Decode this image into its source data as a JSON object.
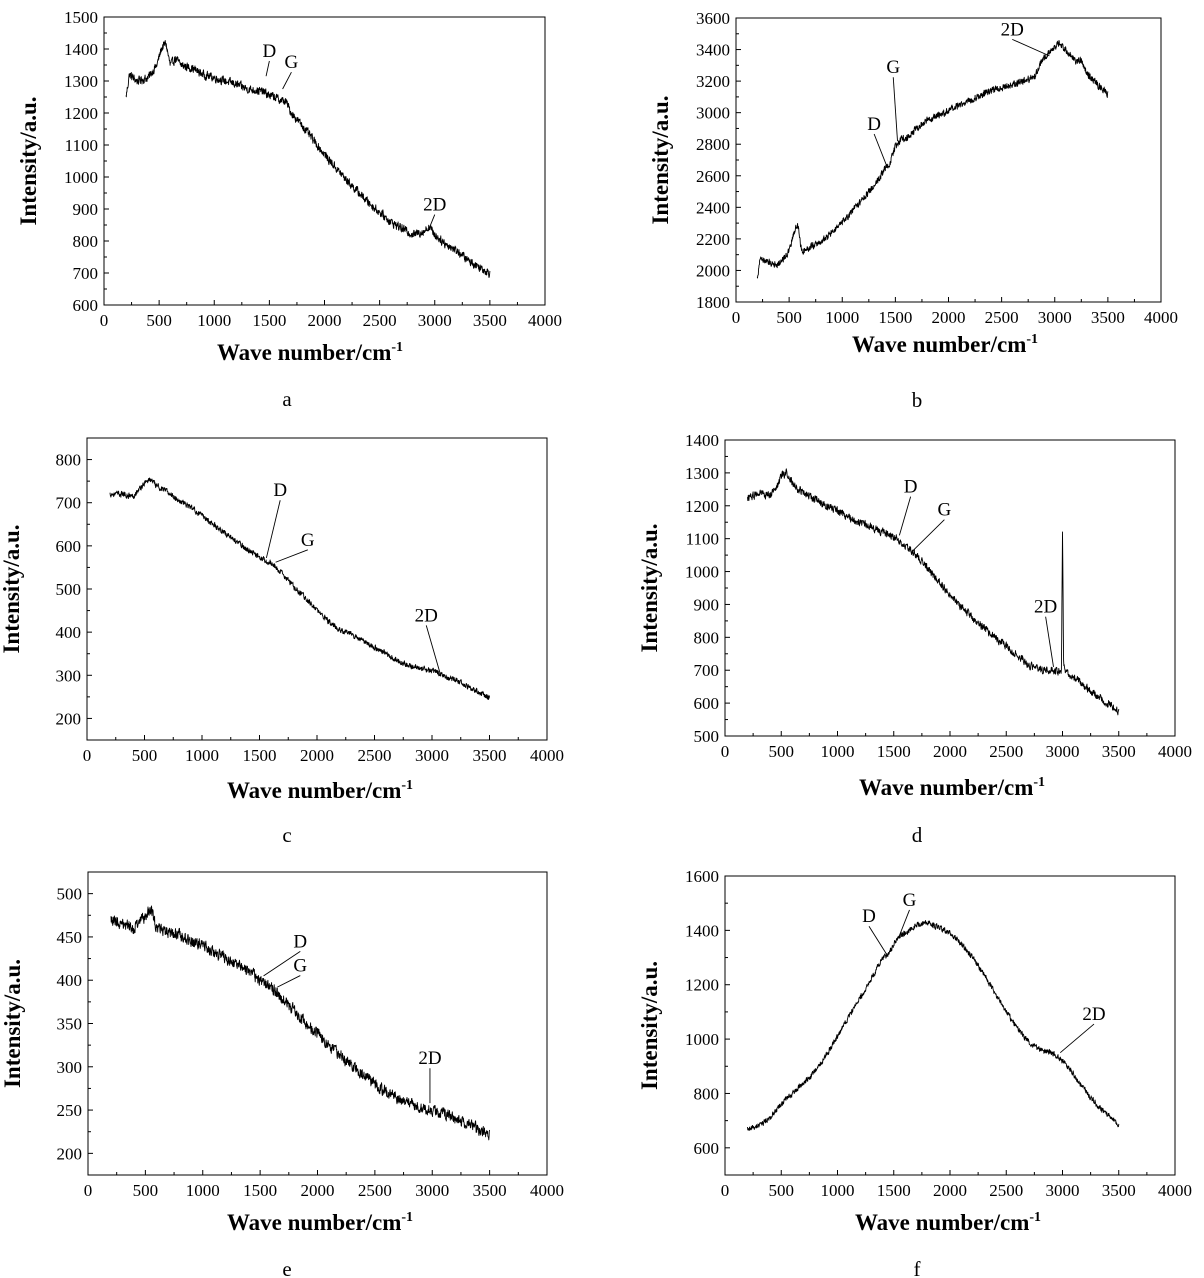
{
  "figure": {
    "panel_count": 6,
    "line_color": "#000000"
  },
  "chart_data": [
    {
      "type": "line",
      "panel": "a",
      "xlabel": "Wave number/cm",
      "xlabel_sup": "-1",
      "ylabel": "Intensity/a.u.",
      "xlim": [
        0,
        4000
      ],
      "ylim": [
        600,
        1500
      ],
      "xticks": [
        0,
        500,
        1000,
        1500,
        2000,
        2500,
        3000,
        3500,
        4000
      ],
      "yticks": [
        600,
        700,
        800,
        900,
        1000,
        1100,
        1200,
        1300,
        1400,
        1500
      ],
      "grid": false,
      "noise": 18,
      "series": [
        {
          "x": [
            200,
            230,
            300,
            400,
            480,
            520,
            560,
            600,
            650,
            700,
            800,
            900,
            1000,
            1100,
            1200,
            1300,
            1400,
            1450,
            1500,
            1550,
            1600,
            1650,
            1700,
            1800,
            2000,
            2200,
            2400,
            2600,
            2700,
            2800,
            2900,
            2950,
            3000,
            3100,
            3200,
            3300,
            3400,
            3500
          ],
          "y": [
            1250,
            1320,
            1300,
            1310,
            1350,
            1400,
            1420,
            1350,
            1370,
            1350,
            1340,
            1320,
            1310,
            1300,
            1290,
            1275,
            1270,
            1265,
            1255,
            1250,
            1240,
            1235,
            1200,
            1160,
            1070,
            990,
            920,
            860,
            840,
            820,
            830,
            845,
            820,
            790,
            770,
            740,
            720,
            700
          ]
        }
      ],
      "annotations": [
        {
          "text": "D",
          "x": 1470,
          "y": 1315,
          "tx": 1500,
          "ty": 1375
        },
        {
          "text": "G",
          "x": 1620,
          "y": 1275,
          "tx": 1700,
          "ty": 1340
        },
        {
          "text": "2D",
          "x": 2950,
          "y": 840,
          "tx": 3000,
          "ty": 895
        }
      ]
    },
    {
      "type": "line",
      "panel": "b",
      "xlabel": "Wave number/cm",
      "xlabel_sup": "-1",
      "ylabel": "Intensity/a.u.",
      "xlim": [
        0,
        4000
      ],
      "ylim": [
        1800,
        3600
      ],
      "xticks": [
        0,
        500,
        1000,
        1500,
        2000,
        2500,
        3000,
        3500,
        4000
      ],
      "yticks": [
        1800,
        2000,
        2200,
        2400,
        2600,
        2800,
        3000,
        3200,
        3400,
        3600
      ],
      "grid": false,
      "noise": 30,
      "series": [
        {
          "x": [
            200,
            230,
            300,
            400,
            500,
            550,
            580,
            620,
            700,
            800,
            900,
            1000,
            1100,
            1200,
            1300,
            1400,
            1450,
            1500,
            1550,
            1600,
            1700,
            1800,
            1900,
            2000,
            2200,
            2400,
            2600,
            2700,
            2800,
            2900,
            3000,
            3050,
            3100,
            3200,
            3250,
            3300,
            3400,
            3500
          ],
          "y": [
            1950,
            2080,
            2050,
            2040,
            2120,
            2250,
            2290,
            2120,
            2150,
            2180,
            2240,
            2300,
            2380,
            2460,
            2540,
            2640,
            2680,
            2790,
            2830,
            2840,
            2900,
            2950,
            2980,
            3010,
            3080,
            3140,
            3180,
            3200,
            3220,
            3350,
            3420,
            3440,
            3400,
            3320,
            3340,
            3250,
            3180,
            3120
          ]
        }
      ],
      "annotations": [
        {
          "text": "D",
          "x": 1420,
          "y": 2660,
          "tx": 1300,
          "ty": 2890
        },
        {
          "text": "G",
          "x": 1520,
          "y": 2820,
          "tx": 1480,
          "ty": 3250
        },
        {
          "text": "2D",
          "x": 2950,
          "y": 3360,
          "tx": 2600,
          "ty": 3490
        }
      ]
    },
    {
      "type": "line",
      "panel": "c",
      "xlabel": "Wave number/cm",
      "xlabel_sup": "-1",
      "ylabel": "Intensity/a.u.",
      "xlim": [
        0,
        4000
      ],
      "ylim": [
        150,
        850
      ],
      "xticks": [
        0,
        500,
        1000,
        1500,
        2000,
        2500,
        3000,
        3500,
        4000
      ],
      "yticks": [
        200,
        300,
        400,
        500,
        600,
        700,
        800
      ],
      "grid": false,
      "noise": 9,
      "series": [
        {
          "x": [
            200,
            300,
            400,
            500,
            550,
            600,
            700,
            800,
            900,
            1000,
            1100,
            1200,
            1300,
            1400,
            1500,
            1600,
            1700,
            1800,
            1900,
            2000,
            2100,
            2200,
            2300,
            2400,
            2500,
            2600,
            2700,
            2800,
            2900,
            3000,
            3100,
            3200,
            3300,
            3400,
            3500
          ],
          "y": [
            720,
            720,
            715,
            745,
            755,
            740,
            725,
            705,
            690,
            670,
            650,
            630,
            610,
            590,
            575,
            560,
            535,
            505,
            480,
            450,
            425,
            405,
            395,
            380,
            365,
            350,
            335,
            322,
            315,
            310,
            300,
            290,
            275,
            262,
            250
          ]
        }
      ],
      "annotations": [
        {
          "text": "D",
          "x": 1560,
          "y": 572,
          "tx": 1680,
          "ty": 715
        },
        {
          "text": "G",
          "x": 1640,
          "y": 562,
          "tx": 1920,
          "ty": 600
        },
        {
          "text": "2D",
          "x": 3070,
          "y": 305,
          "tx": 2950,
          "ty": 425
        }
      ]
    },
    {
      "type": "line",
      "panel": "d",
      "xlabel": "Wave number/cm",
      "xlabel_sup": "-1",
      "ylabel": "Intensity/a.u.",
      "xlim": [
        0,
        4000
      ],
      "ylim": [
        500,
        1400
      ],
      "xticks": [
        0,
        500,
        1000,
        1500,
        2000,
        2500,
        3000,
        3500,
        4000
      ],
      "yticks": [
        500,
        600,
        700,
        800,
        900,
        1000,
        1100,
        1200,
        1300,
        1400
      ],
      "grid": false,
      "noise": 16,
      "series": [
        {
          "x": [
            200,
            300,
            400,
            450,
            500,
            550,
            600,
            650,
            700,
            800,
            900,
            1000,
            1100,
            1200,
            1300,
            1400,
            1500,
            1550,
            1600,
            1700,
            1800,
            1900,
            2000,
            2200,
            2400,
            2600,
            2700,
            2800,
            2900,
            2990,
            3000,
            3010,
            3020,
            3050,
            3100,
            3200,
            3300,
            3400,
            3500
          ],
          "y": [
            1220,
            1240,
            1230,
            1250,
            1290,
            1300,
            1270,
            1250,
            1240,
            1220,
            1200,
            1185,
            1165,
            1150,
            1135,
            1120,
            1105,
            1095,
            1080,
            1050,
            1010,
            970,
            930,
            860,
            800,
            745,
            715,
            700,
            700,
            695,
            1130,
            720,
            695,
            690,
            680,
            650,
            625,
            600,
            575
          ]
        }
      ],
      "annotations": [
        {
          "text": "D",
          "x": 1550,
          "y": 1110,
          "tx": 1650,
          "ty": 1240
        },
        {
          "text": "G",
          "x": 1660,
          "y": 1060,
          "tx": 1950,
          "ty": 1170
        },
        {
          "text": "2D",
          "x": 2920,
          "y": 710,
          "tx": 2850,
          "ty": 875
        }
      ]
    },
    {
      "type": "line",
      "panel": "e",
      "xlabel": "Wave number/cm",
      "xlabel_sup": "-1",
      "ylabel": "Intensity/a.u.",
      "xlim": [
        0,
        4000
      ],
      "ylim": [
        175,
        525
      ],
      "xticks": [
        0,
        500,
        1000,
        1500,
        2000,
        2500,
        3000,
        3500,
        4000
      ],
      "yticks": [
        200,
        250,
        300,
        350,
        400,
        450,
        500
      ],
      "grid": false,
      "noise": 9,
      "series": [
        {
          "x": [
            200,
            300,
            400,
            500,
            550,
            600,
            700,
            800,
            900,
            1000,
            1100,
            1200,
            1300,
            1400,
            1500,
            1600,
            1700,
            1800,
            1900,
            2000,
            2200,
            2400,
            2600,
            2800,
            3000,
            3200,
            3400,
            3500
          ],
          "y": [
            470,
            465,
            460,
            475,
            482,
            460,
            455,
            452,
            445,
            440,
            432,
            425,
            418,
            410,
            400,
            392,
            378,
            365,
            350,
            338,
            313,
            290,
            270,
            258,
            250,
            240,
            228,
            222
          ]
        }
      ],
      "annotations": [
        {
          "text": "D",
          "x": 1530,
          "y": 405,
          "tx": 1850,
          "ty": 438
        },
        {
          "text": "G",
          "x": 1650,
          "y": 392,
          "tx": 1850,
          "ty": 410
        },
        {
          "text": "2D",
          "x": 2980,
          "y": 258,
          "tx": 2980,
          "ty": 303
        }
      ]
    },
    {
      "type": "line",
      "panel": "f",
      "xlabel": "Wave number/cm",
      "xlabel_sup": "-1",
      "ylabel": "Intensity/a.u.",
      "xlim": [
        0,
        4000
      ],
      "ylim": [
        500,
        1600
      ],
      "xticks": [
        0,
        500,
        1000,
        1500,
        2000,
        2500,
        3000,
        3500,
        4000
      ],
      "yticks": [
        600,
        800,
        1000,
        1200,
        1400,
        1600
      ],
      "grid": false,
      "noise": 14,
      "series": [
        {
          "x": [
            200,
            300,
            400,
            500,
            600,
            700,
            800,
            900,
            1000,
            1100,
            1200,
            1300,
            1400,
            1450,
            1500,
            1550,
            1600,
            1700,
            1800,
            1900,
            2000,
            2100,
            2200,
            2300,
            2400,
            2500,
            2600,
            2700,
            2800,
            2900,
            3000,
            3100,
            3200,
            3300,
            3400,
            3500
          ],
          "y": [
            670,
            680,
            710,
            760,
            800,
            840,
            880,
            940,
            1010,
            1080,
            1150,
            1220,
            1300,
            1310,
            1350,
            1380,
            1390,
            1420,
            1430,
            1410,
            1390,
            1350,
            1300,
            1240,
            1170,
            1100,
            1040,
            990,
            960,
            950,
            920,
            870,
            810,
            760,
            720,
            685
          ]
        }
      ],
      "annotations": [
        {
          "text": "D",
          "x": 1440,
          "y": 1310,
          "tx": 1280,
          "ty": 1430
        },
        {
          "text": "G",
          "x": 1540,
          "y": 1370,
          "tx": 1640,
          "ty": 1490
        },
        {
          "text": "2D",
          "x": 2980,
          "y": 950,
          "tx": 3280,
          "ty": 1070
        }
      ]
    }
  ]
}
